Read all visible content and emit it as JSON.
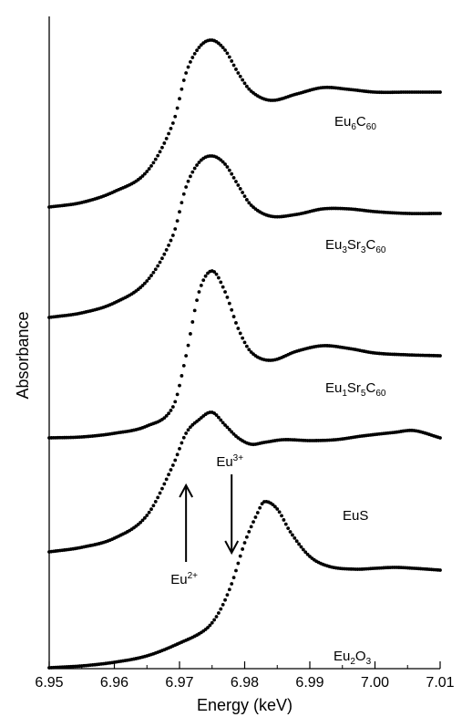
{
  "chart_data": {
    "type": "scatter",
    "xlabel": "Energy (keV)",
    "ylabel": "Absorbance",
    "xlim": [
      6.95,
      7.01
    ],
    "x_ticks": [
      "6.95",
      "6.96",
      "6.97",
      "6.98",
      "6.99",
      "7.00",
      "7.01"
    ],
    "y_ticks_labeled": false,
    "grid": false,
    "series": [
      {
        "name": "Eu6C60",
        "label": {
          "base": "Eu",
          "parts": [
            {
              "t": "6",
              "sub": true
            },
            {
              "t": "C",
              "sub": false
            },
            {
              "t": "60",
              "sub": true
            }
          ]
        },
        "points": [
          [
            6.95,
            227
          ],
          [
            6.955,
            222
          ],
          [
            6.96,
            210
          ],
          [
            6.965,
            188
          ],
          [
            6.969,
            135
          ],
          [
            6.971,
            80
          ],
          [
            6.973,
            52
          ],
          [
            6.975,
            44
          ],
          [
            6.977,
            55
          ],
          [
            6.979,
            80
          ],
          [
            6.981,
            100
          ],
          [
            6.984,
            110
          ],
          [
            6.988,
            103
          ],
          [
            6.992,
            96
          ],
          [
            6.996,
            98
          ],
          [
            7.0,
            101
          ],
          [
            7.005,
            101
          ],
          [
            7.01,
            101
          ]
        ]
      },
      {
        "name": "Eu3Sr3C60",
        "label": {
          "base": "Eu",
          "parts": [
            {
              "t": "3",
              "sub": true
            },
            {
              "t": "Sr",
              "sub": false
            },
            {
              "t": "3",
              "sub": true
            },
            {
              "t": "C",
              "sub": false
            },
            {
              "t": "60",
              "sub": true
            }
          ]
        },
        "points": [
          [
            6.95,
            348
          ],
          [
            6.955,
            343
          ],
          [
            6.96,
            332
          ],
          [
            6.965,
            308
          ],
          [
            6.969,
            258
          ],
          [
            6.971,
            205
          ],
          [
            6.973,
            178
          ],
          [
            6.975,
            171
          ],
          [
            6.977,
            180
          ],
          [
            6.979,
            203
          ],
          [
            6.981,
            225
          ],
          [
            6.984,
            237
          ],
          [
            6.988,
            235
          ],
          [
            6.992,
            229
          ],
          [
            6.996,
            229
          ],
          [
            7.0,
            232
          ],
          [
            7.005,
            234
          ],
          [
            7.01,
            234
          ]
        ]
      },
      {
        "name": "Eu1Sr5C60",
        "label": {
          "base": "Eu",
          "parts": [
            {
              "t": "1",
              "sub": true
            },
            {
              "t": "Sr",
              "sub": false
            },
            {
              "t": "5",
              "sub": true
            },
            {
              "t": "C",
              "sub": false
            },
            {
              "t": "60",
              "sub": true
            }
          ]
        },
        "points": [
          [
            6.95,
            480
          ],
          [
            6.955,
            479
          ],
          [
            6.96,
            475
          ],
          [
            6.965,
            467
          ],
          [
            6.969,
            446
          ],
          [
            6.971,
            390
          ],
          [
            6.973,
            320
          ],
          [
            6.975,
            297
          ],
          [
            6.977,
            320
          ],
          [
            6.979,
            360
          ],
          [
            6.981,
            386
          ],
          [
            6.984,
            395
          ],
          [
            6.988,
            385
          ],
          [
            6.992,
            379
          ],
          [
            6.996,
            382
          ],
          [
            7.0,
            387
          ],
          [
            7.005,
            389
          ],
          [
            7.01,
            390
          ]
        ]
      },
      {
        "name": "EuS",
        "label": {
          "base": "EuS",
          "parts": []
        },
        "points": [
          [
            6.95,
            605
          ],
          [
            6.955,
            600
          ],
          [
            6.96,
            590
          ],
          [
            6.965,
            565
          ],
          [
            6.969,
            510
          ],
          [
            6.971,
            475
          ],
          [
            6.973,
            460
          ],
          [
            6.975,
            452
          ],
          [
            6.977,
            466
          ],
          [
            6.979,
            480
          ],
          [
            6.981,
            487
          ],
          [
            6.983,
            485
          ],
          [
            6.986,
            482
          ],
          [
            6.99,
            483
          ],
          [
            6.994,
            482
          ],
          [
            6.998,
            478
          ],
          [
            7.003,
            474
          ],
          [
            7.006,
            472
          ],
          [
            7.01,
            480
          ]
        ]
      },
      {
        "name": "Eu2O3",
        "label": {
          "base": "Eu",
          "parts": [
            {
              "t": "2",
              "sub": true
            },
            {
              "t": "O",
              "sub": false
            },
            {
              "t": "3",
              "sub": true
            }
          ]
        },
        "points": [
          [
            6.95,
            732
          ],
          [
            6.955,
            730
          ],
          [
            6.96,
            726
          ],
          [
            6.965,
            719
          ],
          [
            6.97,
            705
          ],
          [
            6.974,
            690
          ],
          [
            6.976,
            672
          ],
          [
            6.978,
            640
          ],
          [
            6.98,
            595
          ],
          [
            6.982,
            562
          ],
          [
            6.983,
            550
          ],
          [
            6.985,
            558
          ],
          [
            6.987,
            583
          ],
          [
            6.99,
            610
          ],
          [
            6.993,
            621
          ],
          [
            6.997,
            624
          ],
          [
            7.0,
            623
          ],
          [
            7.003,
            622
          ],
          [
            7.006,
            623
          ],
          [
            7.01,
            625
          ]
        ]
      }
    ],
    "annotations": [
      {
        "name": "Eu3+",
        "base": "Eu",
        "sup": "3+",
        "x": 6.978,
        "arrow": "down"
      },
      {
        "name": "Eu2+",
        "base": "Eu",
        "sup": "2+",
        "x": 6.971,
        "arrow": "up"
      }
    ]
  }
}
